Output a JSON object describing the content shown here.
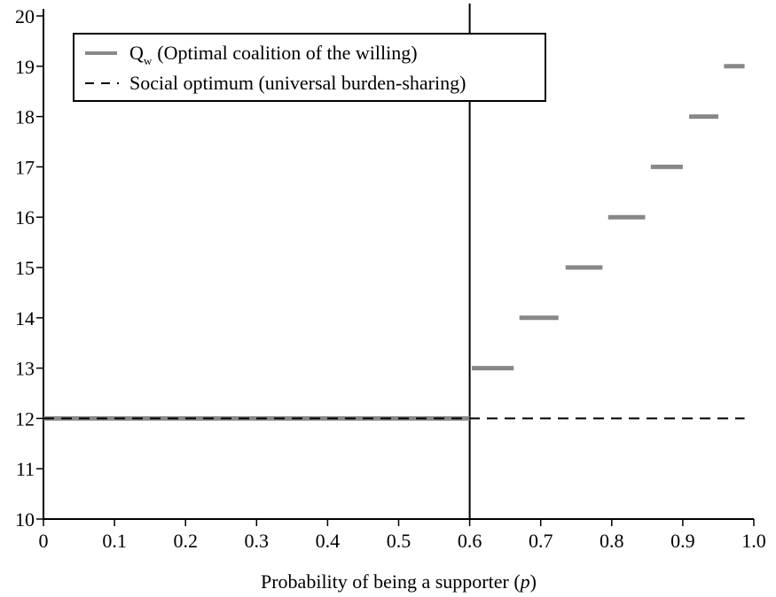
{
  "chart_data": {
    "type": "line",
    "xlabel": "Probability of being a supporter",
    "xlabel_var": "p",
    "xlim": [
      0,
      1.0
    ],
    "ylim": [
      10,
      20
    ],
    "x_ticks": [
      "0",
      "0.1",
      "0.2",
      "0.3",
      "0.4",
      "0.5",
      "0.6",
      "0.7",
      "0.8",
      "0.9",
      "1.0"
    ],
    "y_ticks": [
      "10",
      "11",
      "12",
      "13",
      "14",
      "15",
      "16",
      "17",
      "18",
      "19",
      "20"
    ],
    "grid": false,
    "legend_position": "top-left",
    "vertical_reference_line": {
      "x": 0.6
    },
    "series": [
      {
        "name_main": "Q",
        "name_sub": "w",
        "name_rest": "(Optimal coalition of the willing)",
        "color": "#888888",
        "style": "solid-thick",
        "segments": [
          {
            "x0": 0.0,
            "x1": 0.6,
            "y": 12
          },
          {
            "x0": 0.603,
            "x1": 0.662,
            "y": 13
          },
          {
            "x0": 0.67,
            "x1": 0.725,
            "y": 14
          },
          {
            "x0": 0.735,
            "x1": 0.787,
            "y": 15
          },
          {
            "x0": 0.795,
            "x1": 0.847,
            "y": 16
          },
          {
            "x0": 0.855,
            "x1": 0.9,
            "y": 17
          },
          {
            "x0": 0.909,
            "x1": 0.95,
            "y": 18
          },
          {
            "x0": 0.958,
            "x1": 0.987,
            "y": 19
          }
        ]
      },
      {
        "name": "Social optimum (universal burden-sharing)",
        "color": "#000000",
        "style": "dashed",
        "segments": [
          {
            "x0": 0.0,
            "x1": 0.987,
            "y": 12
          }
        ]
      }
    ]
  }
}
